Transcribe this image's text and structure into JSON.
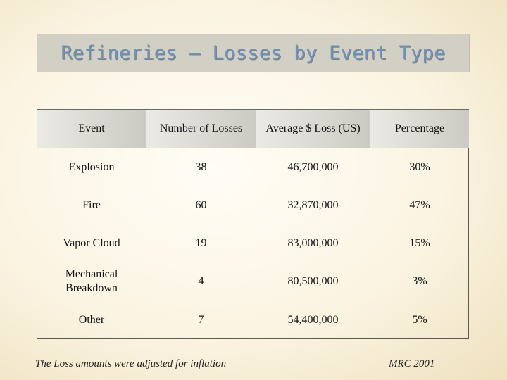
{
  "title": "Refineries – Losses by Event Type",
  "table": {
    "headers": [
      "Event",
      "Number of Losses",
      "Average $ Loss (US)",
      "Percentage"
    ],
    "rows": [
      [
        "Explosion",
        "38",
        "46,700,000",
        "30%"
      ],
      [
        "Fire",
        "60",
        "32,870,000",
        "47%"
      ],
      [
        "Vapor Cloud",
        "19",
        "83,000,000",
        "15%"
      ],
      [
        "Mechanical Breakdown",
        "4",
        "80,500,000",
        "3%"
      ],
      [
        "Other",
        "7",
        "54,400,000",
        "5%"
      ]
    ]
  },
  "footnote": "The Loss amounts were adjusted for inflation",
  "credit": "MRC 2001"
}
